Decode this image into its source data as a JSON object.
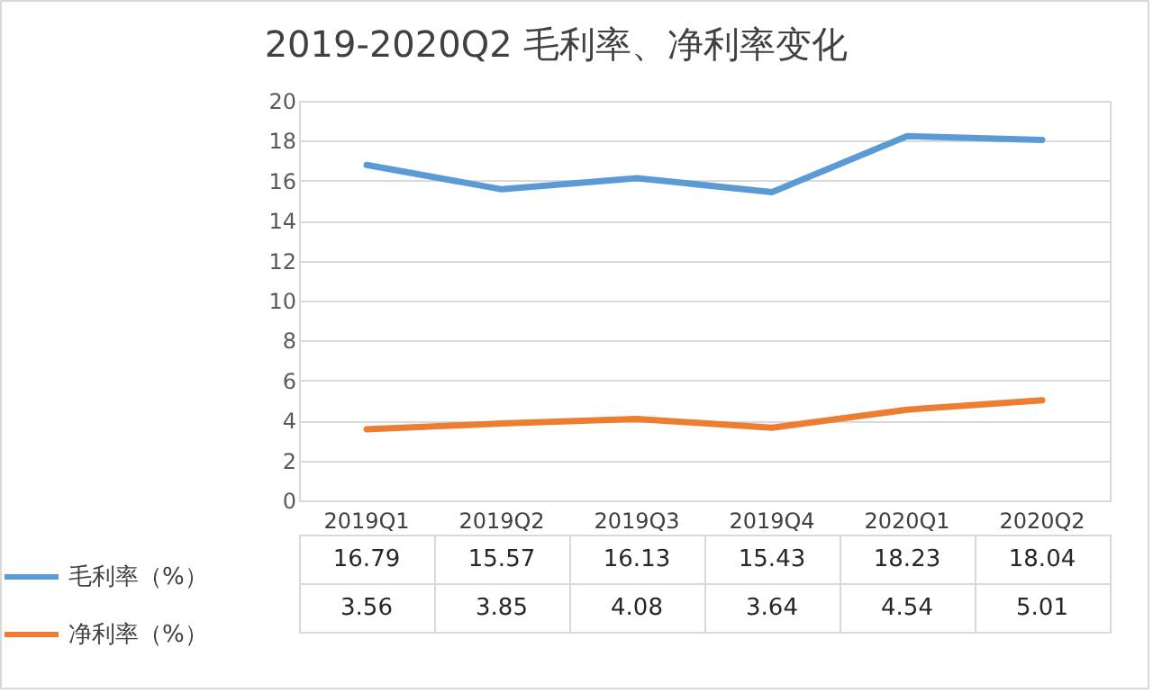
{
  "chart_data": {
    "type": "line",
    "title": "2019-2020Q2 毛利率、净利率变化",
    "categories": [
      "2019Q1",
      "2019Q2",
      "2019Q3",
      "2019Q4",
      "2020Q1",
      "2020Q2"
    ],
    "series": [
      {
        "name": "毛利率（%）",
        "color": "#5b9bd5",
        "values": [
          16.79,
          15.57,
          16.13,
          15.43,
          18.23,
          18.04
        ],
        "value_labels": [
          "16.79",
          "15.57",
          "16.13",
          "15.43",
          "18.23",
          "18.04"
        ]
      },
      {
        "name": "净利率（%）",
        "color": "#ed7d31",
        "values": [
          3.56,
          3.85,
          4.08,
          3.64,
          4.54,
          5.01
        ],
        "value_labels": [
          "3.56",
          "3.85",
          "4.08",
          "3.64",
          "4.54",
          "5.01"
        ]
      }
    ],
    "ylim": [
      0,
      20
    ],
    "yticks": [
      0,
      2,
      4,
      6,
      8,
      10,
      12,
      14,
      16,
      18,
      20
    ],
    "grid": "y",
    "legend": "bottom"
  }
}
